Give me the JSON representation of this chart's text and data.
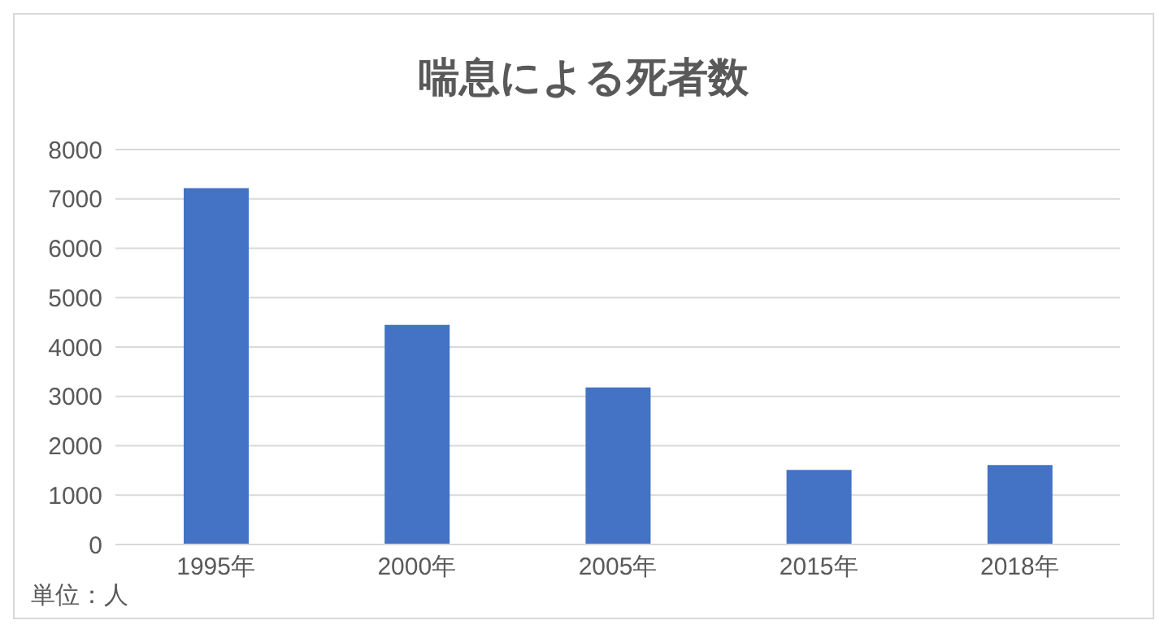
{
  "chart_data": {
    "type": "bar",
    "title": "喘息による死者数",
    "categories": [
      "1995年",
      "2000年",
      "2005年",
      "2015年",
      "2018年"
    ],
    "values": [
      7220,
      4450,
      3180,
      1510,
      1610
    ],
    "color": "#4472c4",
    "ylim": [
      0,
      8000
    ],
    "yticks": [
      0,
      1000,
      2000,
      3000,
      4000,
      5000,
      6000,
      7000,
      8000
    ],
    "grid": "y",
    "annotations": [
      "単位：人"
    ]
  }
}
